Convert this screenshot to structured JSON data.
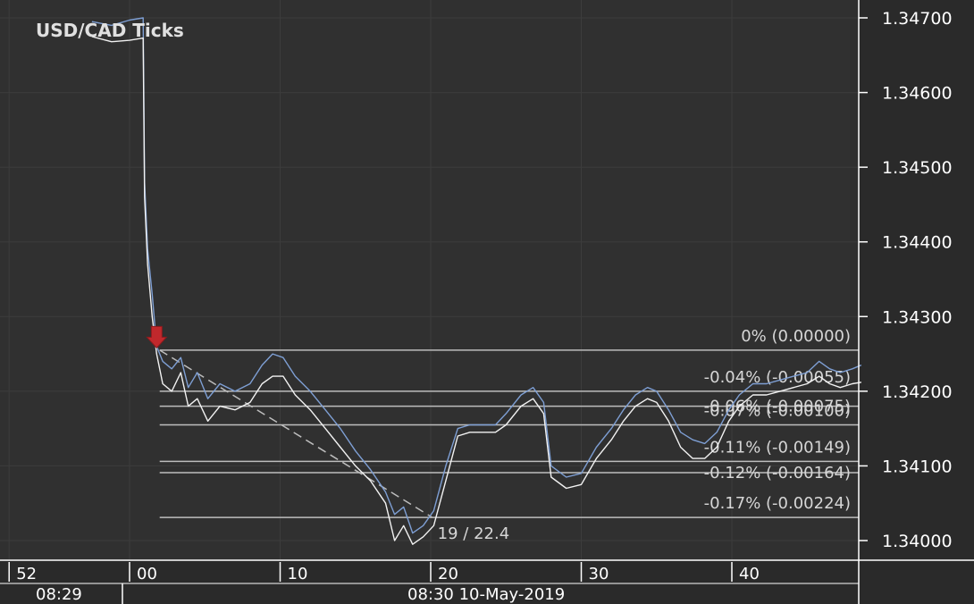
{
  "chart_data": {
    "type": "line",
    "title": "USD/CAD  Ticks",
    "ylim": [
      1.33985,
      1.34715
    ],
    "y_ticks": [
      "1.34000",
      "1.34100",
      "1.34200",
      "1.34300",
      "1.34400",
      "1.34500",
      "1.34600",
      "1.34700"
    ],
    "x_tick_labels": [
      "52",
      "00",
      "10",
      "20",
      "30",
      "40"
    ],
    "time_labels": [
      "08:29",
      "08:30 10-May-2019"
    ],
    "grid": true,
    "series": [
      {
        "role": "ask",
        "color": "#7e9fd4",
        "points": [
          [
            -2.5,
            1.34695
          ],
          [
            -1.2,
            1.3469
          ],
          [
            0,
            1.34697
          ],
          [
            0.9,
            1.347
          ],
          [
            1.0,
            1.3448
          ],
          [
            1.2,
            1.3439
          ],
          [
            1.5,
            1.3433
          ],
          [
            1.8,
            1.3426
          ],
          [
            2.2,
            1.3424
          ],
          [
            2.8,
            1.3423
          ],
          [
            3.4,
            1.34245
          ],
          [
            3.9,
            1.34205
          ],
          [
            4.5,
            1.34225
          ],
          [
            5.2,
            1.3419
          ],
          [
            6.0,
            1.3421
          ],
          [
            7.0,
            1.342
          ],
          [
            8.0,
            1.3421
          ],
          [
            8.8,
            1.34235
          ],
          [
            9.5,
            1.3425
          ],
          [
            10.2,
            1.34245
          ],
          [
            11.0,
            1.3422
          ],
          [
            12.0,
            1.342
          ],
          [
            13.0,
            1.34175
          ],
          [
            14.0,
            1.3415
          ],
          [
            15.0,
            1.3412
          ],
          [
            16.0,
            1.34095
          ],
          [
            17.0,
            1.34065
          ],
          [
            17.6,
            1.34035
          ],
          [
            18.2,
            1.34045
          ],
          [
            18.8,
            1.3401
          ],
          [
            19.5,
            1.3402
          ],
          [
            20.2,
            1.3404
          ],
          [
            21.0,
            1.341
          ],
          [
            21.8,
            1.3415
          ],
          [
            22.6,
            1.34155
          ],
          [
            23.5,
            1.34155
          ],
          [
            24.3,
            1.34155
          ],
          [
            25.0,
            1.3417
          ],
          [
            26.0,
            1.34195
          ],
          [
            26.8,
            1.34205
          ],
          [
            27.5,
            1.34185
          ],
          [
            28.0,
            1.341
          ],
          [
            29.0,
            1.34085
          ],
          [
            30.0,
            1.3409
          ],
          [
            31.0,
            1.34125
          ],
          [
            32.0,
            1.3415
          ],
          [
            32.8,
            1.34175
          ],
          [
            33.6,
            1.34195
          ],
          [
            34.4,
            1.34205
          ],
          [
            35.0,
            1.342
          ],
          [
            35.8,
            1.34175
          ],
          [
            36.6,
            1.34145
          ],
          [
            37.4,
            1.34135
          ],
          [
            38.2,
            1.3413
          ],
          [
            39.0,
            1.34145
          ],
          [
            39.8,
            1.34175
          ],
          [
            40.5,
            1.34195
          ],
          [
            41.4,
            1.3421
          ],
          [
            42.3,
            1.3421
          ],
          [
            43.2,
            1.34215
          ],
          [
            44.1,
            1.3422
          ],
          [
            45.0,
            1.34225
          ],
          [
            45.8,
            1.3424
          ],
          [
            46.5,
            1.3423
          ],
          [
            47.2,
            1.34225
          ],
          [
            48.0,
            1.3423
          ],
          [
            48.6,
            1.34235
          ]
        ]
      },
      {
        "role": "bid",
        "color": "#f2f2f2",
        "points": [
          [
            -2.5,
            1.34675
          ],
          [
            -1.2,
            1.34668
          ],
          [
            0,
            1.3467
          ],
          [
            0.9,
            1.34673
          ],
          [
            1.0,
            1.3446
          ],
          [
            1.2,
            1.3437
          ],
          [
            1.5,
            1.343
          ],
          [
            1.8,
            1.3425
          ],
          [
            2.2,
            1.3421
          ],
          [
            2.8,
            1.342
          ],
          [
            3.4,
            1.34225
          ],
          [
            3.9,
            1.3418
          ],
          [
            4.5,
            1.3419
          ],
          [
            5.2,
            1.3416
          ],
          [
            6.0,
            1.3418
          ],
          [
            7.0,
            1.34175
          ],
          [
            8.0,
            1.34185
          ],
          [
            8.8,
            1.3421
          ],
          [
            9.5,
            1.3422
          ],
          [
            10.2,
            1.3422
          ],
          [
            11.0,
            1.34195
          ],
          [
            12.0,
            1.34175
          ],
          [
            13.0,
            1.3415
          ],
          [
            14.0,
            1.34125
          ],
          [
            15.0,
            1.341
          ],
          [
            16.0,
            1.3408
          ],
          [
            17.0,
            1.3405
          ],
          [
            17.6,
            1.34
          ],
          [
            18.2,
            1.3402
          ],
          [
            18.8,
            1.33995
          ],
          [
            19.5,
            1.34005
          ],
          [
            20.2,
            1.3402
          ],
          [
            21.0,
            1.3408
          ],
          [
            21.8,
            1.3414
          ],
          [
            22.6,
            1.34145
          ],
          [
            23.5,
            1.34145
          ],
          [
            24.3,
            1.34145
          ],
          [
            25.0,
            1.34155
          ],
          [
            26.0,
            1.3418
          ],
          [
            26.8,
            1.3419
          ],
          [
            27.5,
            1.3417
          ],
          [
            28.0,
            1.34085
          ],
          [
            29.0,
            1.3407
          ],
          [
            30.0,
            1.34075
          ],
          [
            31.0,
            1.3411
          ],
          [
            32.0,
            1.34135
          ],
          [
            32.8,
            1.3416
          ],
          [
            33.6,
            1.3418
          ],
          [
            34.4,
            1.3419
          ],
          [
            35.0,
            1.34185
          ],
          [
            35.8,
            1.3416
          ],
          [
            36.6,
            1.34125
          ],
          [
            37.4,
            1.3411
          ],
          [
            38.2,
            1.3411
          ],
          [
            39.0,
            1.34125
          ],
          [
            39.8,
            1.3416
          ],
          [
            40.5,
            1.3418
          ],
          [
            41.4,
            1.34195
          ],
          [
            42.3,
            1.34195
          ],
          [
            43.2,
            1.342
          ],
          [
            44.1,
            1.34205
          ],
          [
            45.0,
            1.3421
          ],
          [
            45.8,
            1.3422
          ],
          [
            46.5,
            1.3421
          ],
          [
            47.2,
            1.34205
          ],
          [
            48.0,
            1.3421
          ],
          [
            48.6,
            1.34212
          ]
        ]
      }
    ],
    "fibonacci": {
      "x_start": 2.0,
      "levels": [
        {
          "label": "0% (0.00000)",
          "value": 1.34255
        },
        {
          "label": "-0.04% (-0.00055)",
          "value": 1.342
        },
        {
          "label": "-0.06% (-0.00075)",
          "value": 1.3418
        },
        {
          "label": "-0.07% (-0.00100)",
          "value": 1.34155
        },
        {
          "label": "-0.11% (-0.00149)",
          "value": 1.34106
        },
        {
          "label": "-0.12% (-0.00164)",
          "value": 1.34091
        },
        {
          "label": "-0.17% (-0.00224)",
          "value": 1.34031
        }
      ]
    },
    "trend_line": {
      "from": [
        2.0,
        1.34255
      ],
      "to": [
        20.1,
        1.34031
      ],
      "label": "19 / 22.4"
    },
    "marker": {
      "type": "sell-arrow",
      "x": 1.8,
      "y": 1.3427,
      "color": "#c0282c"
    }
  }
}
